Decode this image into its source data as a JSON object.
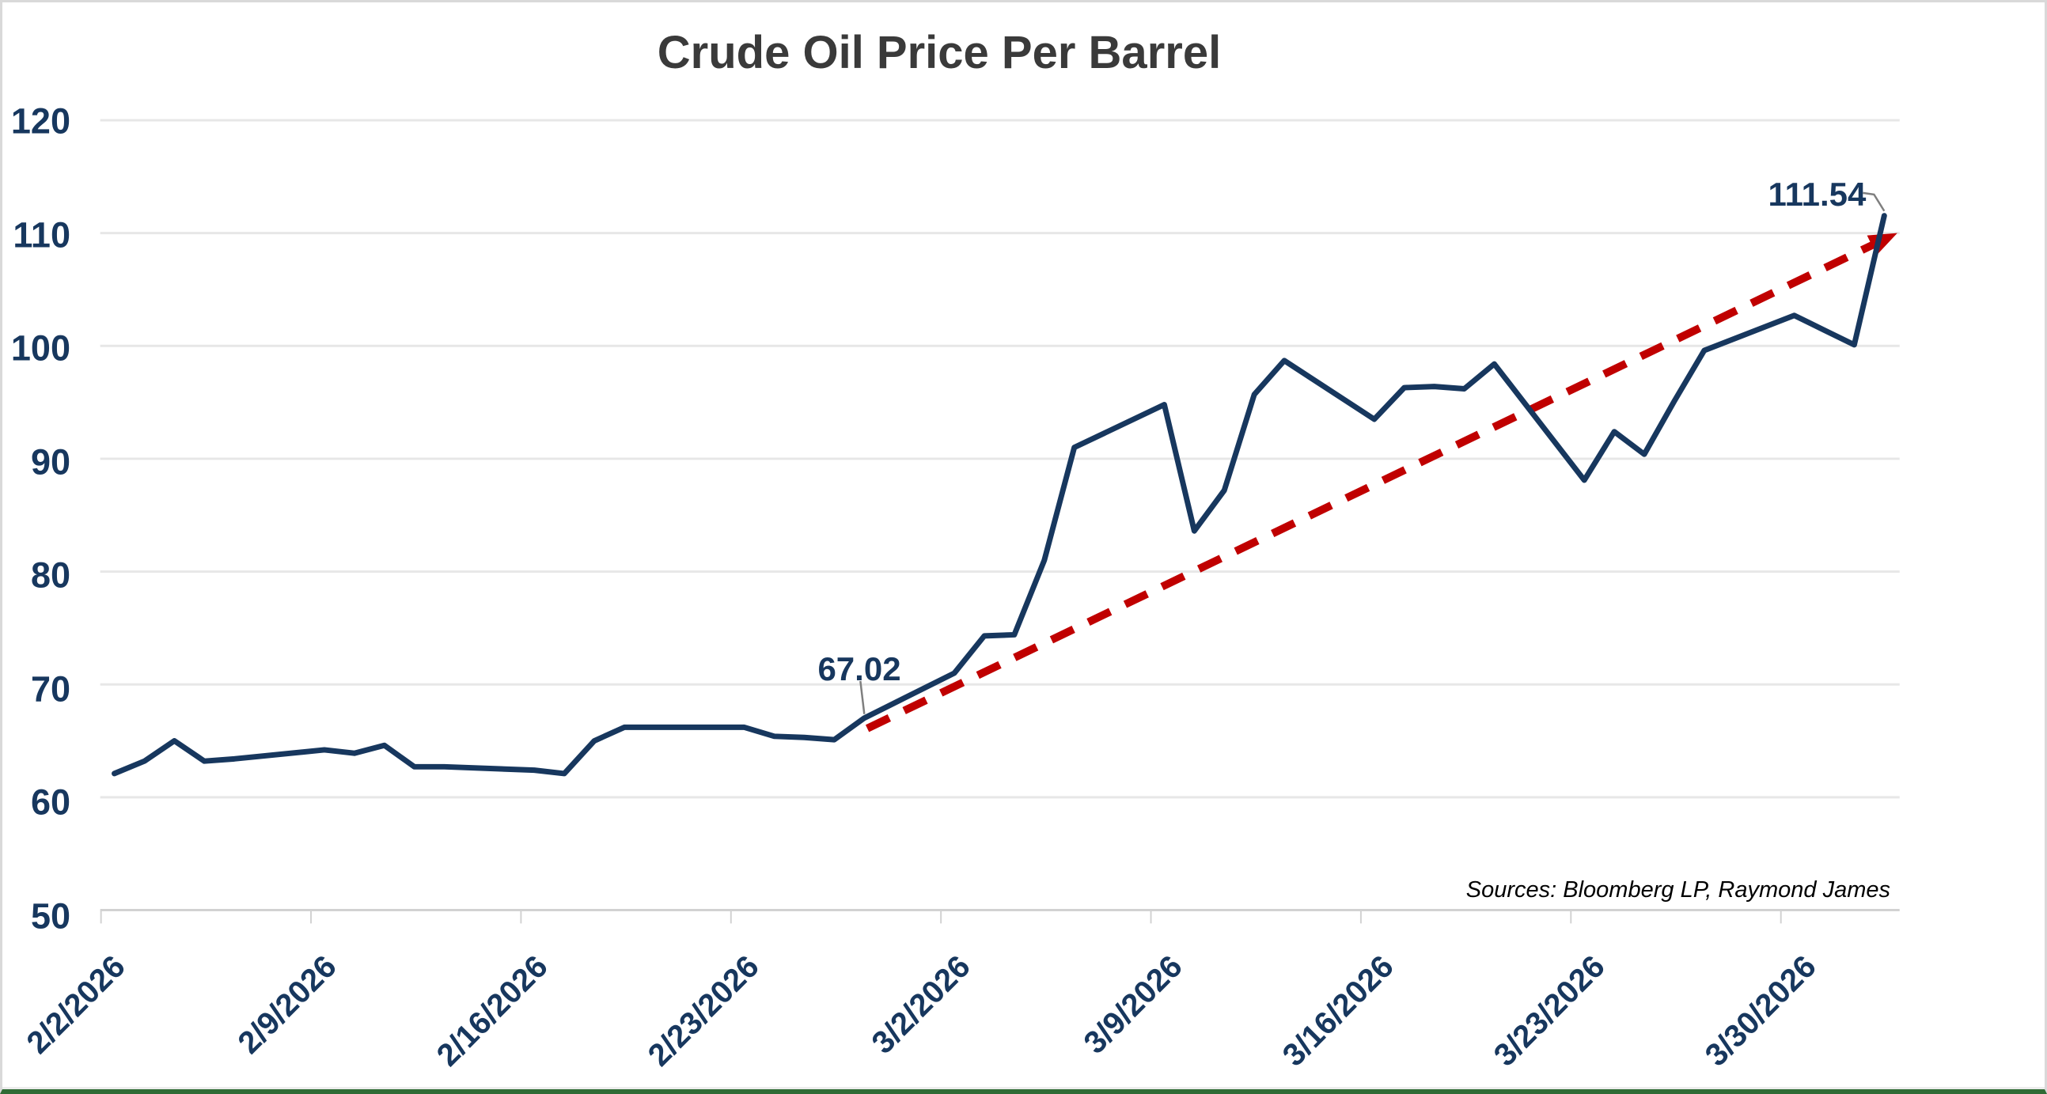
{
  "page": {
    "background": "#FFFFFF",
    "border_color": "#D9D9D9",
    "bottom_accent_color": "#2F6B35"
  },
  "chart_data": {
    "type": "line",
    "title": "Crude Oil Price Per Barrel",
    "title_color": "#3A3A3A",
    "source_note": "Sources: Bloomberg LP, Raymond James",
    "legend": "none",
    "grid": {
      "horizontal": true,
      "color": "#E7E7E7",
      "axis_line_color": "#D2D2D2"
    },
    "axis": {
      "y": {
        "min": 50,
        "max": 120,
        "tick_step": 10,
        "ticks": [
          120,
          110,
          100,
          90,
          80,
          70,
          60,
          50
        ],
        "label_color": "#17375E"
      },
      "x": {
        "tick_labels": [
          "2/2/2026",
          "2/9/2026",
          "2/16/2026",
          "2/23/2026",
          "3/2/2026",
          "3/9/2026",
          "3/16/2026",
          "3/23/2026",
          "3/30/2026"
        ],
        "tick_day_offsets": [
          0,
          7,
          14,
          21,
          28,
          35,
          42,
          49,
          56
        ],
        "label_color": "#17375E"
      }
    },
    "series": [
      {
        "name": "crude-oil-price",
        "color": "#17375E",
        "stroke_width": 7,
        "points": [
          {
            "date": "2/2/2026",
            "day": 0,
            "value": 62.1
          },
          {
            "date": "2/3/2026",
            "day": 1,
            "value": 63.2
          },
          {
            "date": "2/4/2026",
            "day": 2,
            "value": 65.0
          },
          {
            "date": "2/5/2026",
            "day": 3,
            "value": 63.2
          },
          {
            "date": "2/6/2026",
            "day": 4,
            "value": 63.4
          },
          {
            "date": "2/9/2026",
            "day": 7,
            "value": 64.2
          },
          {
            "date": "2/10/2026",
            "day": 8,
            "value": 63.9
          },
          {
            "date": "2/11/2026",
            "day": 9,
            "value": 64.6
          },
          {
            "date": "2/12/2026",
            "day": 10,
            "value": 62.7
          },
          {
            "date": "2/13/2026",
            "day": 11,
            "value": 62.7
          },
          {
            "date": "2/16/2026",
            "day": 14,
            "value": 62.4
          },
          {
            "date": "2/17/2026",
            "day": 15,
            "value": 62.1
          },
          {
            "date": "2/18/2026",
            "day": 16,
            "value": 65.0
          },
          {
            "date": "2/19/2026",
            "day": 17,
            "value": 66.2
          },
          {
            "date": "2/20/2026",
            "day": 18,
            "value": 66.2
          },
          {
            "date": "2/23/2026",
            "day": 21,
            "value": 66.2
          },
          {
            "date": "2/24/2026",
            "day": 22,
            "value": 65.4
          },
          {
            "date": "2/25/2026",
            "day": 23,
            "value": 65.3
          },
          {
            "date": "2/26/2026",
            "day": 24,
            "value": 65.1
          },
          {
            "date": "2/27/2026",
            "day": 25,
            "value": 67.02
          },
          {
            "date": "3/2/2026",
            "day": 28,
            "value": 71.0
          },
          {
            "date": "3/3/2026",
            "day": 29,
            "value": 74.3
          },
          {
            "date": "3/4/2026",
            "day": 30,
            "value": 74.4
          },
          {
            "date": "3/5/2026",
            "day": 31,
            "value": 81.0
          },
          {
            "date": "3/6/2026",
            "day": 32,
            "value": 91.0
          },
          {
            "date": "3/9/2026",
            "day": 35,
            "value": 94.8
          },
          {
            "date": "3/10/2026",
            "day": 36,
            "value": 83.6
          },
          {
            "date": "3/11/2026",
            "day": 37,
            "value": 87.2
          },
          {
            "date": "3/12/2026",
            "day": 38,
            "value": 95.7
          },
          {
            "date": "3/13/2026",
            "day": 39,
            "value": 98.7
          },
          {
            "date": "3/16/2026",
            "day": 42,
            "value": 93.5
          },
          {
            "date": "3/17/2026",
            "day": 43,
            "value": 96.3
          },
          {
            "date": "3/18/2026",
            "day": 44,
            "value": 96.4
          },
          {
            "date": "3/19/2026",
            "day": 45,
            "value": 96.2
          },
          {
            "date": "3/20/2026",
            "day": 46,
            "value": 98.4
          },
          {
            "date": "3/23/2026",
            "day": 49,
            "value": 88.1
          },
          {
            "date": "3/24/2026",
            "day": 50,
            "value": 92.4
          },
          {
            "date": "3/25/2026",
            "day": 51,
            "value": 90.4
          },
          {
            "date": "3/26/2026",
            "day": 52,
            "value": 95.1
          },
          {
            "date": "3/27/2026",
            "day": 53,
            "value": 99.6
          },
          {
            "date": "3/30/2026",
            "day": 56,
            "value": 102.7
          },
          {
            "date": "3/31/2026",
            "day": 57,
            "value": 101.4
          },
          {
            "date": "4/1/2026",
            "day": 58,
            "value": 100.1
          },
          {
            "date": "4/2/2026",
            "day": 59,
            "value": 111.54
          }
        ]
      }
    ],
    "trendline": {
      "color": "#C00000",
      "style": "dashed",
      "arrow": true,
      "start": {
        "day": 25.1,
        "value": 66.1
      },
      "end": {
        "day": 59.2,
        "value": 109.7
      }
    },
    "annotations": [
      {
        "label": "67.02",
        "date": "2/27/2026",
        "day": 25,
        "value": 67.02
      },
      {
        "label": "111.54",
        "date": "4/2/2026",
        "day": 59,
        "value": 111.54
      }
    ]
  }
}
